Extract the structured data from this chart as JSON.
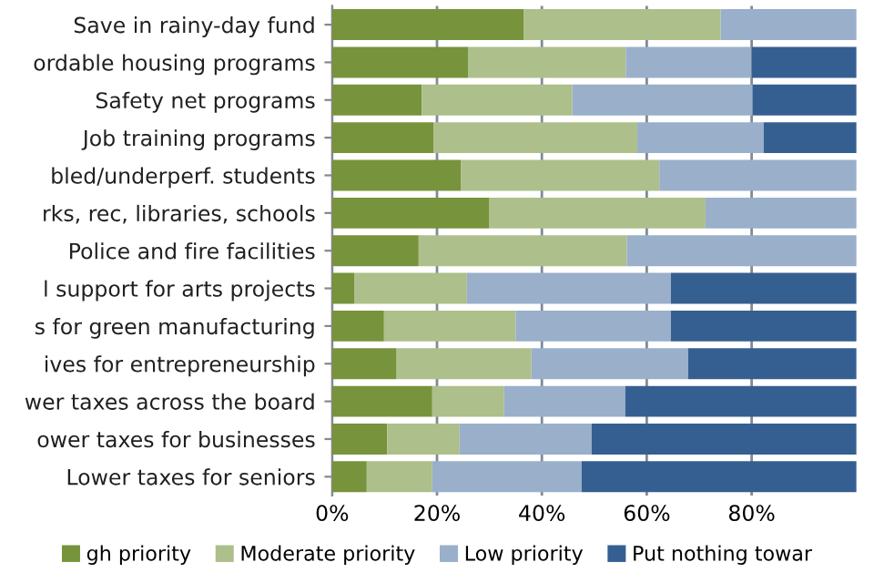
{
  "chart_data": {
    "type": "bar",
    "orientation": "horizontal",
    "stacked": true,
    "categories": [
      "Save in rainy-day fund",
      "ordable housing programs",
      "Safety net programs",
      "Job training programs",
      "bled/underperf. students",
      "rks, rec, libraries, schools",
      "Police and fire facilities",
      "l support for arts projects",
      "s for green manufacturing",
      "ives for entrepreneurship",
      "wer taxes across the board",
      "ower taxes for businesses",
      "Lower taxes for seniors"
    ],
    "series": [
      {
        "name": "gh priority",
        "color": "#77933c",
        "values": [
          36.5,
          26,
          17.1,
          19.4,
          24.6,
          30,
          16.5,
          4.3,
          9.9,
          12.3,
          19.1,
          10.5,
          6.6
        ]
      },
      {
        "name": "Moderate priority",
        "color": "#adbf8a",
        "values": [
          37.6,
          30,
          28.7,
          38.8,
          37.8,
          41.2,
          39.7,
          21.4,
          25.1,
          25.7,
          13.7,
          13.8,
          12.5
        ]
      },
      {
        "name": "Low priority",
        "color": "#99afca",
        "values": [
          25.9,
          24,
          34.4,
          24.1,
          37.6,
          28.8,
          43.8,
          38.9,
          29.6,
          29.9,
          23.1,
          25.2,
          28.5
        ]
      },
      {
        "name": "Put nothing towar",
        "color": "#365f91",
        "values": [
          0,
          20,
          19.8,
          17.7,
          0,
          0,
          0,
          35.4,
          35.4,
          32.1,
          44.1,
          50.5,
          52.4
        ]
      }
    ],
    "xlim": [
      0,
      100
    ],
    "xticks": [
      {
        "value": 0,
        "label": "0%"
      },
      {
        "value": 20,
        "label": "20%"
      },
      {
        "value": 40,
        "label": "40%"
      },
      {
        "value": 60,
        "label": "60%"
      },
      {
        "value": 80,
        "label": "80%"
      }
    ],
    "grid": "x",
    "legend": "bottom"
  }
}
